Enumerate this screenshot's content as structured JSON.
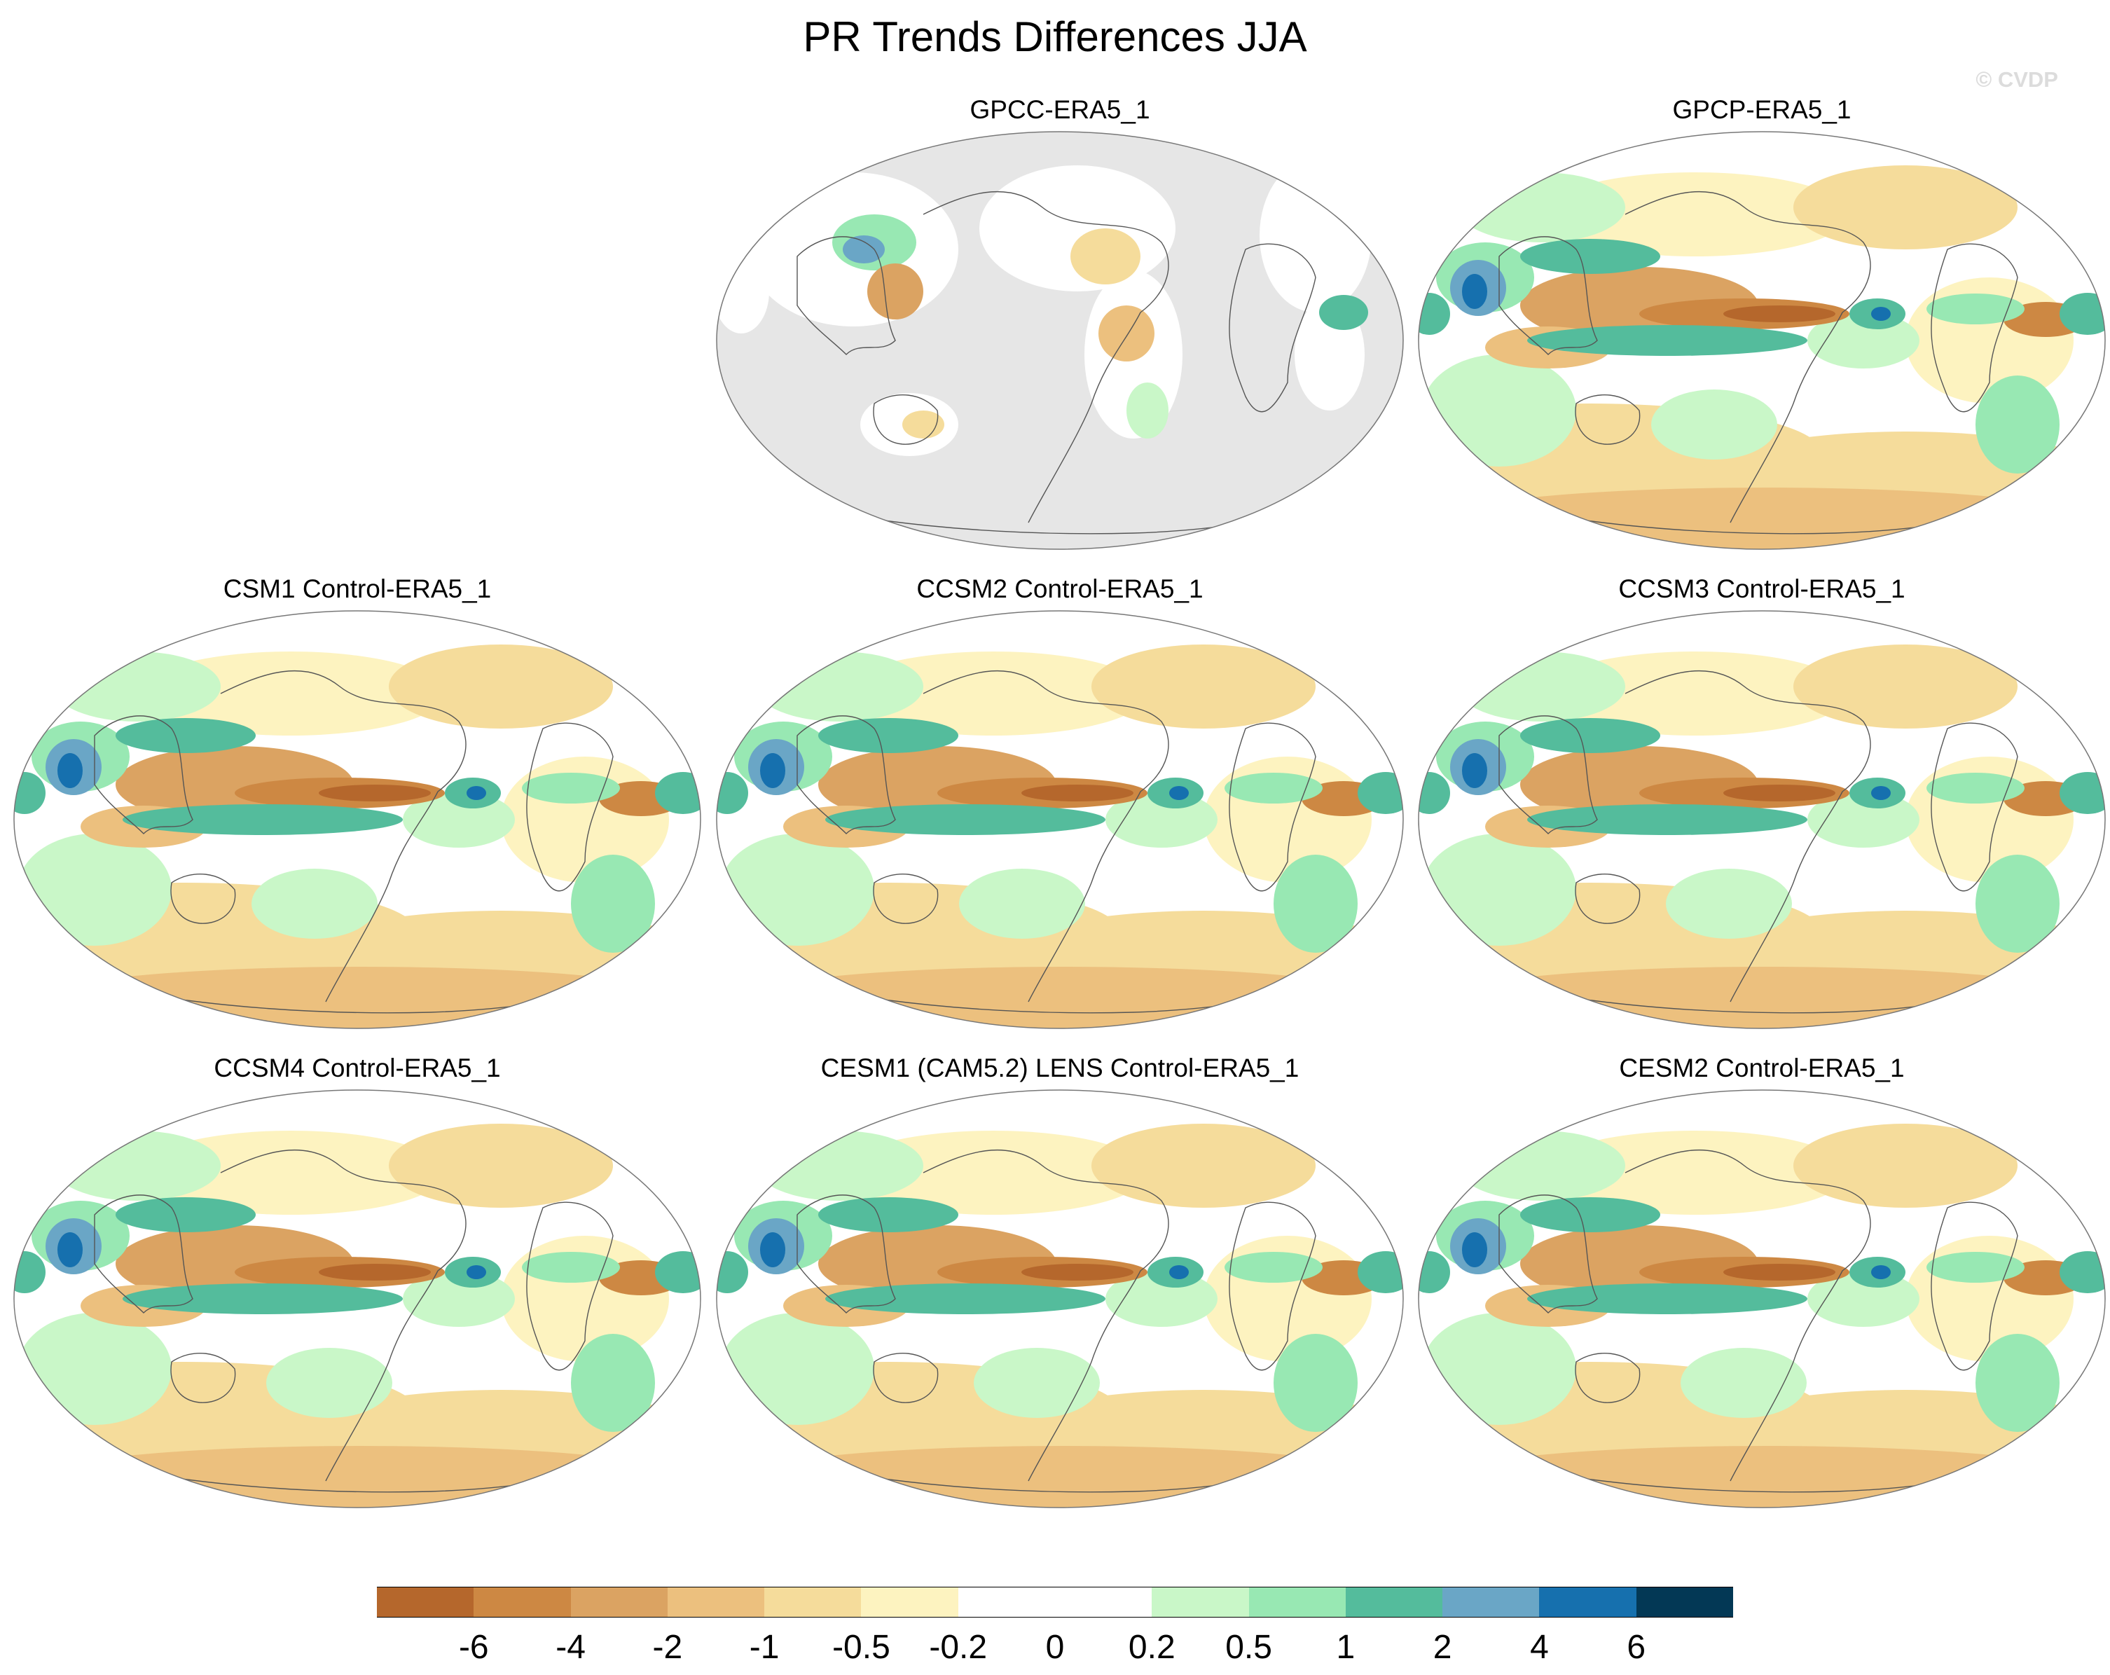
{
  "title": "PR Trends Differences JJA",
  "copyright": "© CVDP",
  "panels": [
    {
      "id": "gpcc",
      "title": "GPCC-ERA5_1",
      "style": "gpcc"
    },
    {
      "id": "gpcp",
      "title": "GPCP-ERA5_1",
      "style": "full"
    },
    {
      "id": "csm1",
      "title": "CSM1 Control-ERA5_1",
      "style": "full"
    },
    {
      "id": "ccsm2",
      "title": "CCSM2 Control-ERA5_1",
      "style": "full"
    },
    {
      "id": "ccsm3",
      "title": "CCSM3 Control-ERA5_1",
      "style": "full"
    },
    {
      "id": "ccsm4",
      "title": "CCSM4 Control-ERA5_1",
      "style": "full"
    },
    {
      "id": "cesm1",
      "title": "CESM1 (CAM5.2) LENS Control-ERA5_1",
      "style": "full"
    },
    {
      "id": "cesm2",
      "title": "CESM2 Control-ERA5_1",
      "style": "full"
    }
  ],
  "colorbar": {
    "colors": [
      "#b5672c",
      "#cd8843",
      "#dba362",
      "#ecc07e",
      "#f5dc9b",
      "#fdf3c0",
      "#ffffff",
      "#ffffff",
      "#c9f7c8",
      "#98e8b3",
      "#54bc9c",
      "#6aa6c6",
      "#1670ae",
      "#033855"
    ],
    "labels": [
      "-6",
      "-4",
      "-2",
      "-1",
      "-0.5",
      "-0.2",
      "0",
      "0.2",
      "0.5",
      "1",
      "2",
      "4",
      "6"
    ]
  }
}
